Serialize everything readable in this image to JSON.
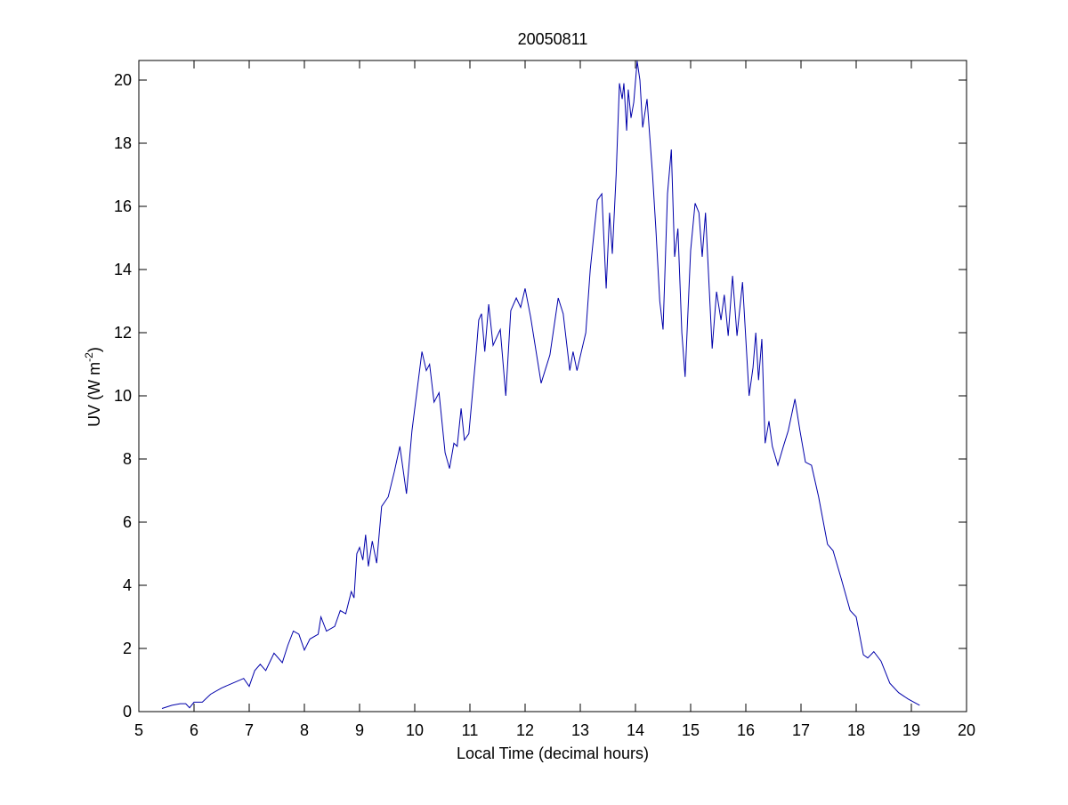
{
  "chart_data": {
    "type": "line",
    "title": "20050811",
    "xlabel": "Local Time (decimal hours)",
    "ylabel": [
      "UV (W m",
      "-2",
      ")"
    ],
    "xlim": [
      5,
      20
    ],
    "ylim": [
      0,
      20.62
    ],
    "xticks": [
      5,
      6,
      7,
      8,
      9,
      10,
      11,
      12,
      13,
      14,
      15,
      16,
      17,
      18,
      19,
      20
    ],
    "yticks": [
      0,
      2,
      4,
      6,
      8,
      10,
      12,
      14,
      16,
      18,
      20
    ],
    "grid": false,
    "series": [
      {
        "name": "UV",
        "color": "#0000aa",
        "x": [
          5.42,
          5.6,
          5.75,
          5.85,
          5.92,
          6.0,
          6.15,
          6.3,
          6.5,
          6.7,
          6.9,
          7.0,
          7.1,
          7.2,
          7.3,
          7.45,
          7.6,
          7.7,
          7.8,
          7.9,
          8.0,
          8.1,
          8.25,
          8.3,
          8.4,
          8.55,
          8.65,
          8.75,
          8.85,
          8.9,
          8.95,
          9.0,
          9.06,
          9.11,
          9.16,
          9.23,
          9.31,
          9.4,
          9.52,
          9.63,
          9.73,
          9.85,
          9.95,
          10.13,
          10.21,
          10.27,
          10.35,
          10.44,
          10.55,
          10.63,
          10.71,
          10.77,
          10.84,
          10.9,
          10.98,
          11.11,
          11.16,
          11.21,
          11.27,
          11.34,
          11.42,
          11.55,
          11.65,
          11.74,
          11.84,
          11.92,
          12.0,
          12.1,
          12.29,
          12.45,
          12.6,
          12.69,
          12.81,
          12.87,
          12.94,
          13.02,
          13.1,
          13.18,
          13.31,
          13.39,
          13.47,
          13.53,
          13.58,
          13.65,
          13.71,
          13.76,
          13.79,
          13.84,
          13.87,
          13.92,
          13.97,
          14.03,
          14.08,
          14.13,
          14.21,
          14.31,
          14.37,
          14.44,
          14.5,
          14.58,
          14.65,
          14.71,
          14.77,
          14.84,
          14.9,
          15.0,
          15.08,
          15.15,
          15.21,
          15.27,
          15.39,
          15.47,
          15.55,
          15.61,
          15.68,
          15.76,
          15.84,
          15.94,
          16.0,
          16.06,
          16.13,
          16.18,
          16.23,
          16.29,
          16.35,
          16.42,
          16.48,
          16.58,
          16.68,
          16.77,
          16.89,
          16.98,
          17.08,
          17.19,
          17.32,
          17.48,
          17.58,
          17.73,
          17.89,
          18.0,
          18.13,
          18.21,
          18.32,
          18.45,
          18.61,
          18.77,
          18.94,
          19.15
        ],
        "values": [
          0.1,
          0.2,
          0.25,
          0.25,
          0.12,
          0.3,
          0.3,
          0.55,
          0.75,
          0.9,
          1.05,
          0.8,
          1.3,
          1.5,
          1.3,
          1.85,
          1.55,
          2.1,
          2.55,
          2.45,
          1.95,
          2.3,
          2.45,
          3.0,
          2.55,
          2.7,
          3.2,
          3.1,
          3.8,
          3.6,
          5.0,
          5.2,
          4.8,
          5.6,
          4.6,
          5.4,
          4.7,
          6.5,
          6.8,
          7.6,
          8.4,
          6.9,
          8.9,
          11.4,
          10.8,
          11.0,
          9.8,
          10.1,
          8.2,
          7.7,
          8.5,
          8.4,
          9.6,
          8.6,
          8.8,
          11.3,
          12.4,
          12.6,
          11.4,
          12.9,
          11.6,
          12.1,
          10.0,
          12.7,
          13.1,
          12.8,
          13.4,
          12.5,
          10.4,
          11.3,
          13.1,
          12.6,
          10.8,
          11.4,
          10.8,
          11.4,
          12.0,
          14.0,
          16.2,
          16.4,
          13.4,
          15.8,
          14.5,
          17.0,
          19.9,
          19.4,
          19.9,
          18.4,
          19.7,
          18.8,
          19.3,
          20.6,
          20.0,
          18.5,
          19.4,
          17.0,
          15.3,
          13.0,
          12.1,
          16.4,
          17.8,
          14.4,
          15.3,
          12.0,
          10.6,
          14.6,
          16.1,
          15.8,
          14.4,
          15.8,
          11.5,
          13.3,
          12.4,
          13.2,
          11.9,
          13.8,
          11.9,
          13.6,
          11.8,
          10.0,
          10.9,
          12.0,
          10.5,
          11.8,
          8.5,
          9.2,
          8.4,
          7.8,
          8.4,
          8.9,
          9.9,
          8.9,
          7.9,
          7.8,
          6.8,
          5.3,
          5.1,
          4.2,
          3.2,
          3.0,
          1.8,
          1.7,
          1.9,
          1.6,
          0.9,
          0.6,
          0.4,
          0.2
        ]
      }
    ]
  }
}
